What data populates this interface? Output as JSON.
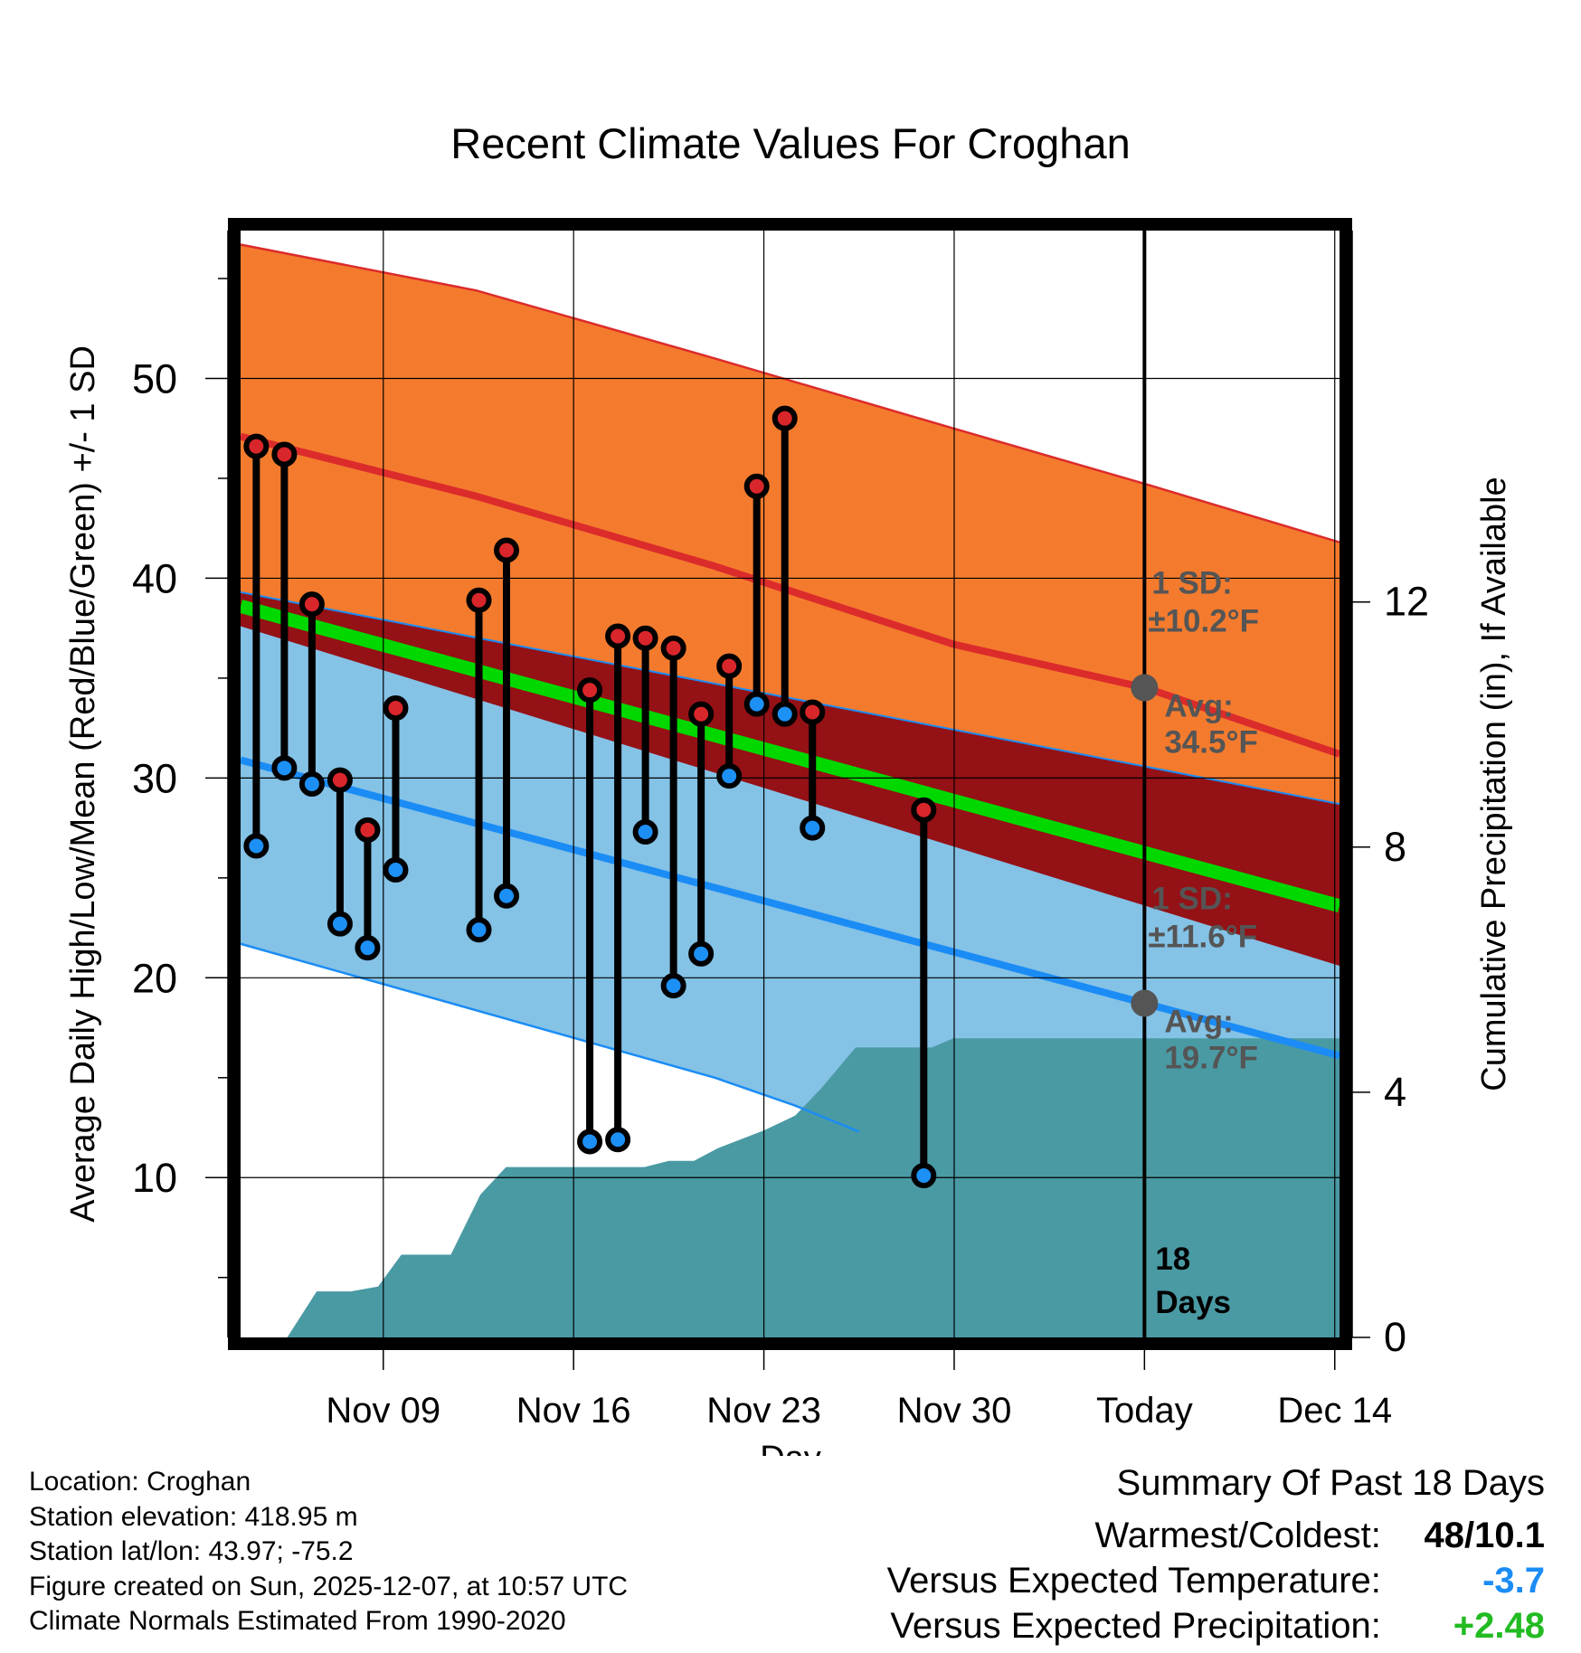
{
  "chart_data": {
    "type": "line",
    "title": "Recent Climate Values For Croghan",
    "xlabel": "Day",
    "ylabel": "Average Daily High/Low/Mean (Red/Blue/Green) +/- 1 SD",
    "y2label": "Cumulative Precipitation (in), If Available",
    "xlim": [
      0,
      23.1
    ],
    "ylim": [
      2.0,
      57.4
    ],
    "y2lim": [
      0,
      18.06
    ],
    "yticks": [
      10,
      20,
      30,
      40,
      50
    ],
    "y2ticks": [
      0,
      4,
      8,
      12
    ],
    "xticks": [
      {
        "day": 3,
        "label": "Nov 09"
      },
      {
        "day": 7,
        "label": "Nov 16"
      },
      {
        "day": 11,
        "label": "Nov 23"
      },
      {
        "day": 15,
        "label": "Nov 30"
      },
      {
        "day": 19,
        "label": "Today"
      },
      {
        "day": 23,
        "label": "Dec 14"
      }
    ],
    "normals": {
      "high": [
        [
          0,
          47.1
        ],
        [
          4.96,
          44.1
        ],
        [
          9.97,
          40.6
        ],
        [
          14.98,
          36.7
        ],
        [
          19.04,
          34.5
        ],
        [
          23.1,
          31.2
        ]
      ],
      "high_upper": [
        [
          0,
          56.7
        ],
        [
          4.96,
          54.4
        ],
        [
          9.97,
          51.0
        ],
        [
          14.98,
          47.5
        ],
        [
          19.04,
          44.7
        ],
        [
          23.1,
          41.8
        ]
      ],
      "low": [
        [
          0,
          30.9
        ],
        [
          23.1,
          16.1
        ]
      ],
      "low_lower": [
        [
          0,
          21.7
        ],
        [
          9.97,
          15.0
        ],
        [
          11.66,
          13.6
        ],
        [
          13.0,
          12.3
        ]
      ],
      "mean": [
        [
          0,
          38.6
        ],
        [
          23.1,
          23.6
        ]
      ],
      "low_upper": [
        [
          0,
          39.3
        ],
        [
          23.1,
          28.7
        ]
      ],
      "high_lower": [
        [
          0,
          37.6
        ],
        [
          23.1,
          20.6
        ]
      ]
    },
    "precip_cumulative": [
      [
        0.0,
        0.0
      ],
      [
        0.98,
        0.0
      ],
      [
        1.6,
        0.75
      ],
      [
        2.32,
        0.75
      ],
      [
        2.89,
        0.83
      ],
      [
        3.38,
        1.35
      ],
      [
        4.42,
        1.35
      ],
      [
        5.04,
        2.33
      ],
      [
        5.58,
        2.78
      ],
      [
        8.49,
        2.78
      ],
      [
        9.0,
        2.88
      ],
      [
        9.53,
        2.88
      ],
      [
        10.04,
        3.09
      ],
      [
        11.01,
        3.38
      ],
      [
        11.66,
        3.62
      ],
      [
        12.2,
        4.06
      ],
      [
        12.93,
        4.73
      ],
      [
        14.53,
        4.73
      ],
      [
        14.98,
        4.88
      ],
      [
        23.1,
        4.88
      ]
    ],
    "obs": [
      {
        "day": 0.33,
        "high": 46.6,
        "low": 26.6
      },
      {
        "day": 0.92,
        "high": 46.2,
        "low": 30.5
      },
      {
        "day": 1.5,
        "high": 38.7,
        "low": 29.7
      },
      {
        "day": 2.09,
        "high": 29.9,
        "low": 22.7
      },
      {
        "day": 2.67,
        "high": 27.4,
        "low": 21.5
      },
      {
        "day": 3.26,
        "high": 33.5,
        "low": 25.4
      },
      {
        "day": 5.01,
        "high": 38.9,
        "low": 22.4
      },
      {
        "day": 5.59,
        "high": 41.4,
        "low": 24.1
      },
      {
        "day": 7.34,
        "high": 34.4,
        "low": 11.8
      },
      {
        "day": 7.93,
        "high": 37.1,
        "low": 11.9
      },
      {
        "day": 8.51,
        "high": 37.0,
        "low": 27.3
      },
      {
        "day": 9.1,
        "high": 36.5,
        "low": 19.6
      },
      {
        "day": 9.68,
        "high": 33.2,
        "low": 21.2
      },
      {
        "day": 10.27,
        "high": 35.6,
        "low": 30.1
      },
      {
        "day": 10.85,
        "high": 44.6,
        "low": 33.7
      },
      {
        "day": 11.44,
        "high": 48.0,
        "low": 33.2
      },
      {
        "day": 12.02,
        "high": 33.3,
        "low": 27.5
      },
      {
        "day": 14.36,
        "high": 28.4,
        "low": 10.1
      }
    ],
    "annotations": {
      "high_sd_label": "1 SD:",
      "high_sd_value": "±10.2°F",
      "high_avg_label": "Avg:",
      "high_avg_value": "34.5°F",
      "low_sd_label": "1 SD:",
      "low_sd_value": "±11.6°F",
      "low_avg_label": "Avg:",
      "low_avg_value": "19.7°F",
      "days_count": "18",
      "days_word": "Days"
    },
    "colors": {
      "high_band": "#f47b2e",
      "overlap_band": "#941116",
      "low_band": "#84c2e6",
      "high_line": "#dc2b2b",
      "mean_line": "#00d800",
      "low_line": "#1b8cf5",
      "precip": "#4a9aa4",
      "annotation": "#555555",
      "high_dot": "#d9262a",
      "low_dot": "#1d90f5"
    }
  },
  "info": {
    "location": "Location: Croghan",
    "elevation": "Station elevation: 418.95 m",
    "latlon": "Station lat/lon: 43.97; -75.2",
    "created": "Figure created on Sun, 2025-12-07, at 10:57 UTC",
    "normals": "Climate Normals Estimated From 1990-2020"
  },
  "summary": {
    "title": "Summary Of Past 18 Days",
    "rows": [
      {
        "label": "Warmest/Coldest:",
        "value": "48/10.1",
        "color": "#000000"
      },
      {
        "label": "Versus Expected Temperature:",
        "value": "-3.7",
        "color": "#1b8cf5"
      },
      {
        "label": "Versus Expected Precipitation:",
        "value": "+2.48",
        "color": "#22bb22"
      }
    ]
  }
}
